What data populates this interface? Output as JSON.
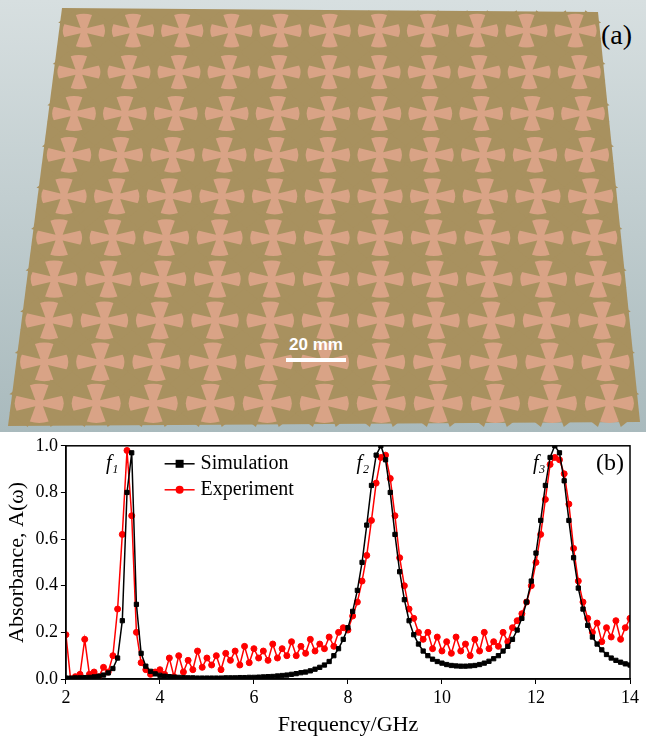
{
  "photo": {
    "label": "(a)",
    "scale_bar": "20 mm"
  },
  "chart_data": {
    "type": "line",
    "title": "(b)",
    "x_label": "Frequency/GHz",
    "y_label": "Absorbance, A(ω)",
    "xlim": [
      2,
      14
    ],
    "xticks": [
      2,
      4,
      6,
      8,
      10,
      12,
      14
    ],
    "ylim": [
      0,
      1
    ],
    "yticks": [
      {
        "value": 0,
        "label": "0.0"
      },
      {
        "value": 0.2,
        "label": "0.2"
      },
      {
        "value": 0.4,
        "label": "0.4"
      },
      {
        "value": 0.6,
        "label": "0.6"
      },
      {
        "value": 0.8,
        "label": "0.8"
      },
      {
        "value": 1,
        "label": "1.0"
      }
    ],
    "grid": false,
    "legend": "top",
    "annotations": [
      {
        "text": "f₁",
        "x": 3.12,
        "y": 0.9
      },
      {
        "text": "f₂",
        "x": 8.45,
        "y": 0.9
      },
      {
        "text": "f₃",
        "x": 12.2,
        "y": 0.9
      }
    ],
    "x": [
      2.0,
      2.1,
      2.2,
      2.3,
      2.4,
      2.5,
      2.6,
      2.7,
      2.8,
      2.9,
      3.0,
      3.1,
      3.2,
      3.3,
      3.4,
      3.5,
      3.6,
      3.7,
      3.8,
      3.9,
      4.0,
      4.1,
      4.2,
      4.3,
      4.4,
      4.5,
      4.6,
      4.7,
      4.8,
      4.9,
      5.0,
      5.1,
      5.2,
      5.3,
      5.4,
      5.5,
      5.6,
      5.7,
      5.8,
      5.9,
      6.0,
      6.1,
      6.2,
      6.3,
      6.4,
      6.5,
      6.6,
      6.7,
      6.8,
      6.9,
      7.0,
      7.1,
      7.2,
      7.3,
      7.4,
      7.5,
      7.6,
      7.7,
      7.8,
      7.9,
      8.0,
      8.1,
      8.2,
      8.3,
      8.4,
      8.5,
      8.6,
      8.7,
      8.8,
      8.9,
      9.0,
      9.1,
      9.2,
      9.3,
      9.4,
      9.5,
      9.6,
      9.7,
      9.8,
      9.9,
      10.0,
      10.1,
      10.2,
      10.3,
      10.4,
      10.5,
      10.6,
      10.7,
      10.8,
      10.9,
      11.0,
      11.1,
      11.2,
      11.3,
      11.4,
      11.5,
      11.6,
      11.7,
      11.8,
      11.9,
      12.0,
      12.1,
      12.2,
      12.3,
      12.4,
      12.5,
      12.6,
      12.7,
      12.8,
      12.9,
      13.0,
      13.1,
      13.2,
      13.3,
      13.4,
      13.5,
      13.6,
      13.7,
      13.8,
      13.9,
      14.0
    ],
    "series": [
      {
        "name": "Simulation",
        "color": "#000000",
        "marker": "square",
        "line_style": "solid",
        "values": [
          0.004,
          0.004,
          0.005,
          0.005,
          0.006,
          0.007,
          0.009,
          0.012,
          0.017,
          0.026,
          0.045,
          0.09,
          0.25,
          0.8,
          0.97,
          0.32,
          0.11,
          0.055,
          0.033,
          0.022,
          0.016,
          0.012,
          0.01,
          0.008,
          0.007,
          0.006,
          0.005,
          0.005,
          0.004,
          0.004,
          0.004,
          0.004,
          0.004,
          0.004,
          0.005,
          0.005,
          0.005,
          0.006,
          0.006,
          0.007,
          0.007,
          0.008,
          0.009,
          0.01,
          0.011,
          0.013,
          0.015,
          0.017,
          0.02,
          0.023,
          0.027,
          0.03,
          0.035,
          0.042,
          0.05,
          0.06,
          0.075,
          0.1,
          0.13,
          0.17,
          0.22,
          0.29,
          0.38,
          0.5,
          0.66,
          0.83,
          0.96,
          1.0,
          0.94,
          0.8,
          0.62,
          0.46,
          0.34,
          0.25,
          0.19,
          0.15,
          0.12,
          0.1,
          0.085,
          0.075,
          0.068,
          0.062,
          0.058,
          0.056,
          0.055,
          0.055,
          0.056,
          0.058,
          0.062,
          0.068,
          0.076,
          0.087,
          0.1,
          0.12,
          0.14,
          0.17,
          0.21,
          0.26,
          0.33,
          0.42,
          0.54,
          0.68,
          0.83,
          0.95,
          1.0,
          0.97,
          0.85,
          0.68,
          0.52,
          0.39,
          0.3,
          0.23,
          0.18,
          0.15,
          0.125,
          0.105,
          0.09,
          0.08,
          0.072,
          0.065,
          0.06
        ]
      },
      {
        "name": "Experiment",
        "color": "#ff0000",
        "marker": "circle",
        "line_style": "solid",
        "values": [
          0.19,
          0.0,
          0.01,
          0.02,
          0.17,
          0.02,
          0.03,
          0.01,
          0.05,
          0.03,
          0.1,
          0.3,
          0.62,
          0.98,
          0.7,
          0.2,
          0.07,
          0.04,
          0.02,
          0.03,
          0.04,
          0.02,
          0.09,
          0.01,
          0.1,
          0.03,
          0.08,
          0.04,
          0.12,
          0.05,
          0.09,
          0.06,
          0.1,
          0.04,
          0.11,
          0.08,
          0.12,
          0.06,
          0.14,
          0.07,
          0.13,
          0.09,
          0.12,
          0.08,
          0.15,
          0.09,
          0.13,
          0.1,
          0.16,
          0.1,
          0.14,
          0.11,
          0.17,
          0.12,
          0.15,
          0.13,
          0.18,
          0.14,
          0.2,
          0.22,
          0.21,
          0.27,
          0.33,
          0.42,
          0.53,
          0.68,
          0.84,
          0.95,
          0.96,
          0.86,
          0.7,
          0.52,
          0.4,
          0.3,
          0.26,
          0.2,
          0.17,
          0.2,
          0.13,
          0.18,
          0.12,
          0.16,
          0.11,
          0.18,
          0.12,
          0.15,
          0.1,
          0.17,
          0.12,
          0.2,
          0.13,
          0.16,
          0.14,
          0.2,
          0.16,
          0.22,
          0.25,
          0.28,
          0.33,
          0.4,
          0.5,
          0.62,
          0.77,
          0.92,
          0.95,
          0.94,
          0.88,
          0.75,
          0.56,
          0.42,
          0.33,
          0.26,
          0.2,
          0.24,
          0.16,
          0.22,
          0.18,
          0.25,
          0.17,
          0.22,
          0.26
        ]
      }
    ]
  }
}
